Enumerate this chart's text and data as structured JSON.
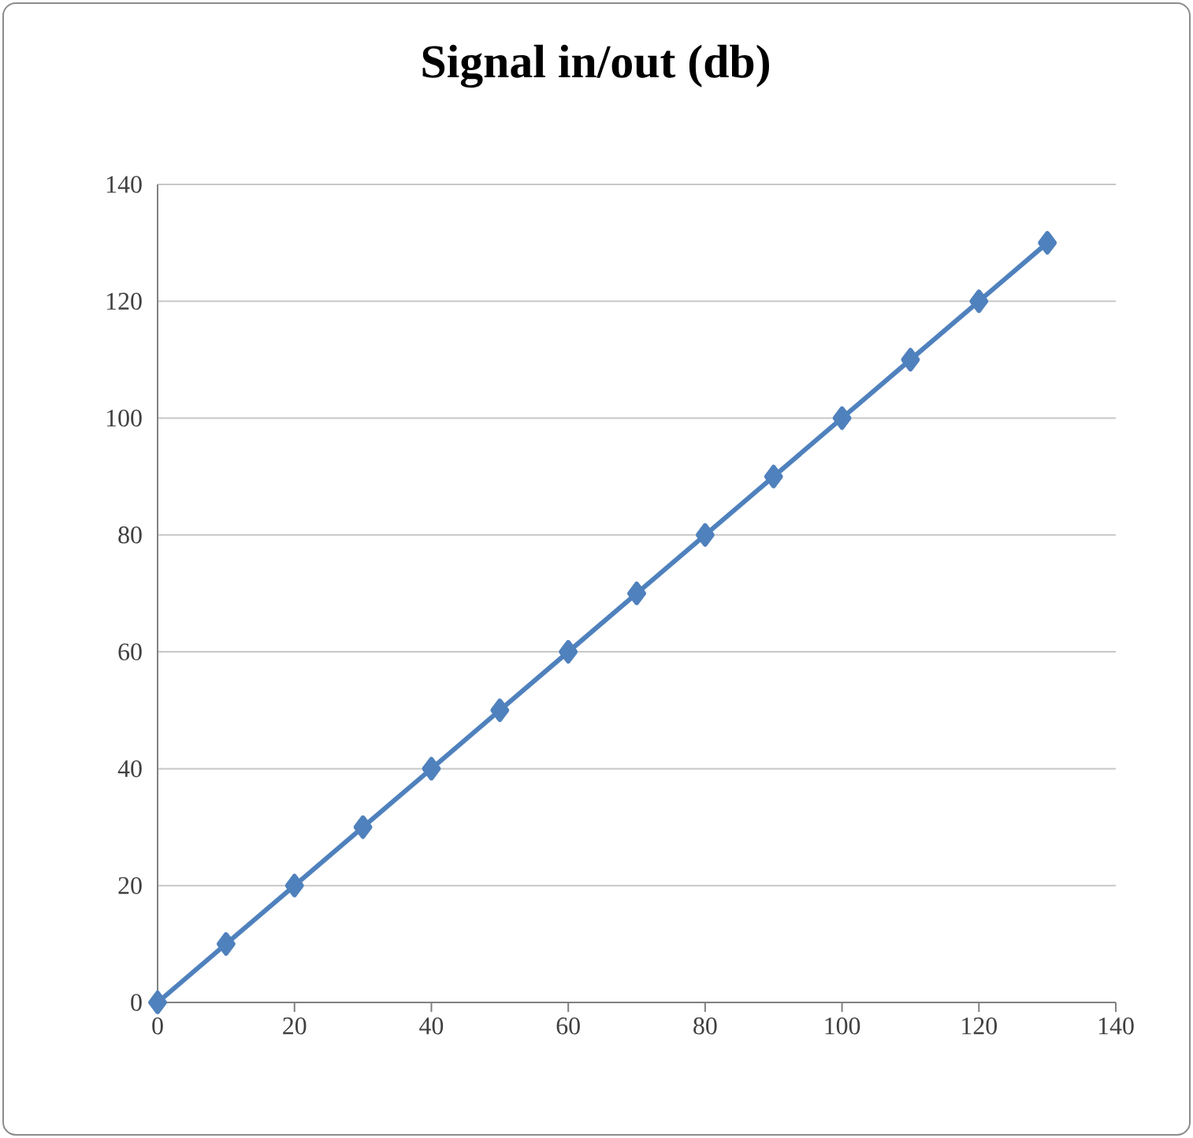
{
  "chart_data": {
    "type": "line",
    "title": "Signal in/out (db)",
    "x": [
      0,
      10,
      20,
      30,
      40,
      50,
      60,
      70,
      80,
      90,
      100,
      110,
      120,
      130
    ],
    "series": [
      {
        "color": "#4f81bd",
        "values": [
          0,
          10,
          20,
          30,
          40,
          50,
          60,
          70,
          80,
          90,
          100,
          110,
          120,
          130
        ]
      }
    ],
    "xlim": [
      0,
      140
    ],
    "ylim": [
      0,
      140
    ],
    "xticks": [
      0,
      20,
      40,
      60,
      80,
      100,
      120,
      140
    ],
    "yticks": [
      0,
      20,
      40,
      60,
      80,
      100,
      120,
      140
    ],
    "grid": "y",
    "marker": "diamond",
    "line_style": "solid"
  }
}
